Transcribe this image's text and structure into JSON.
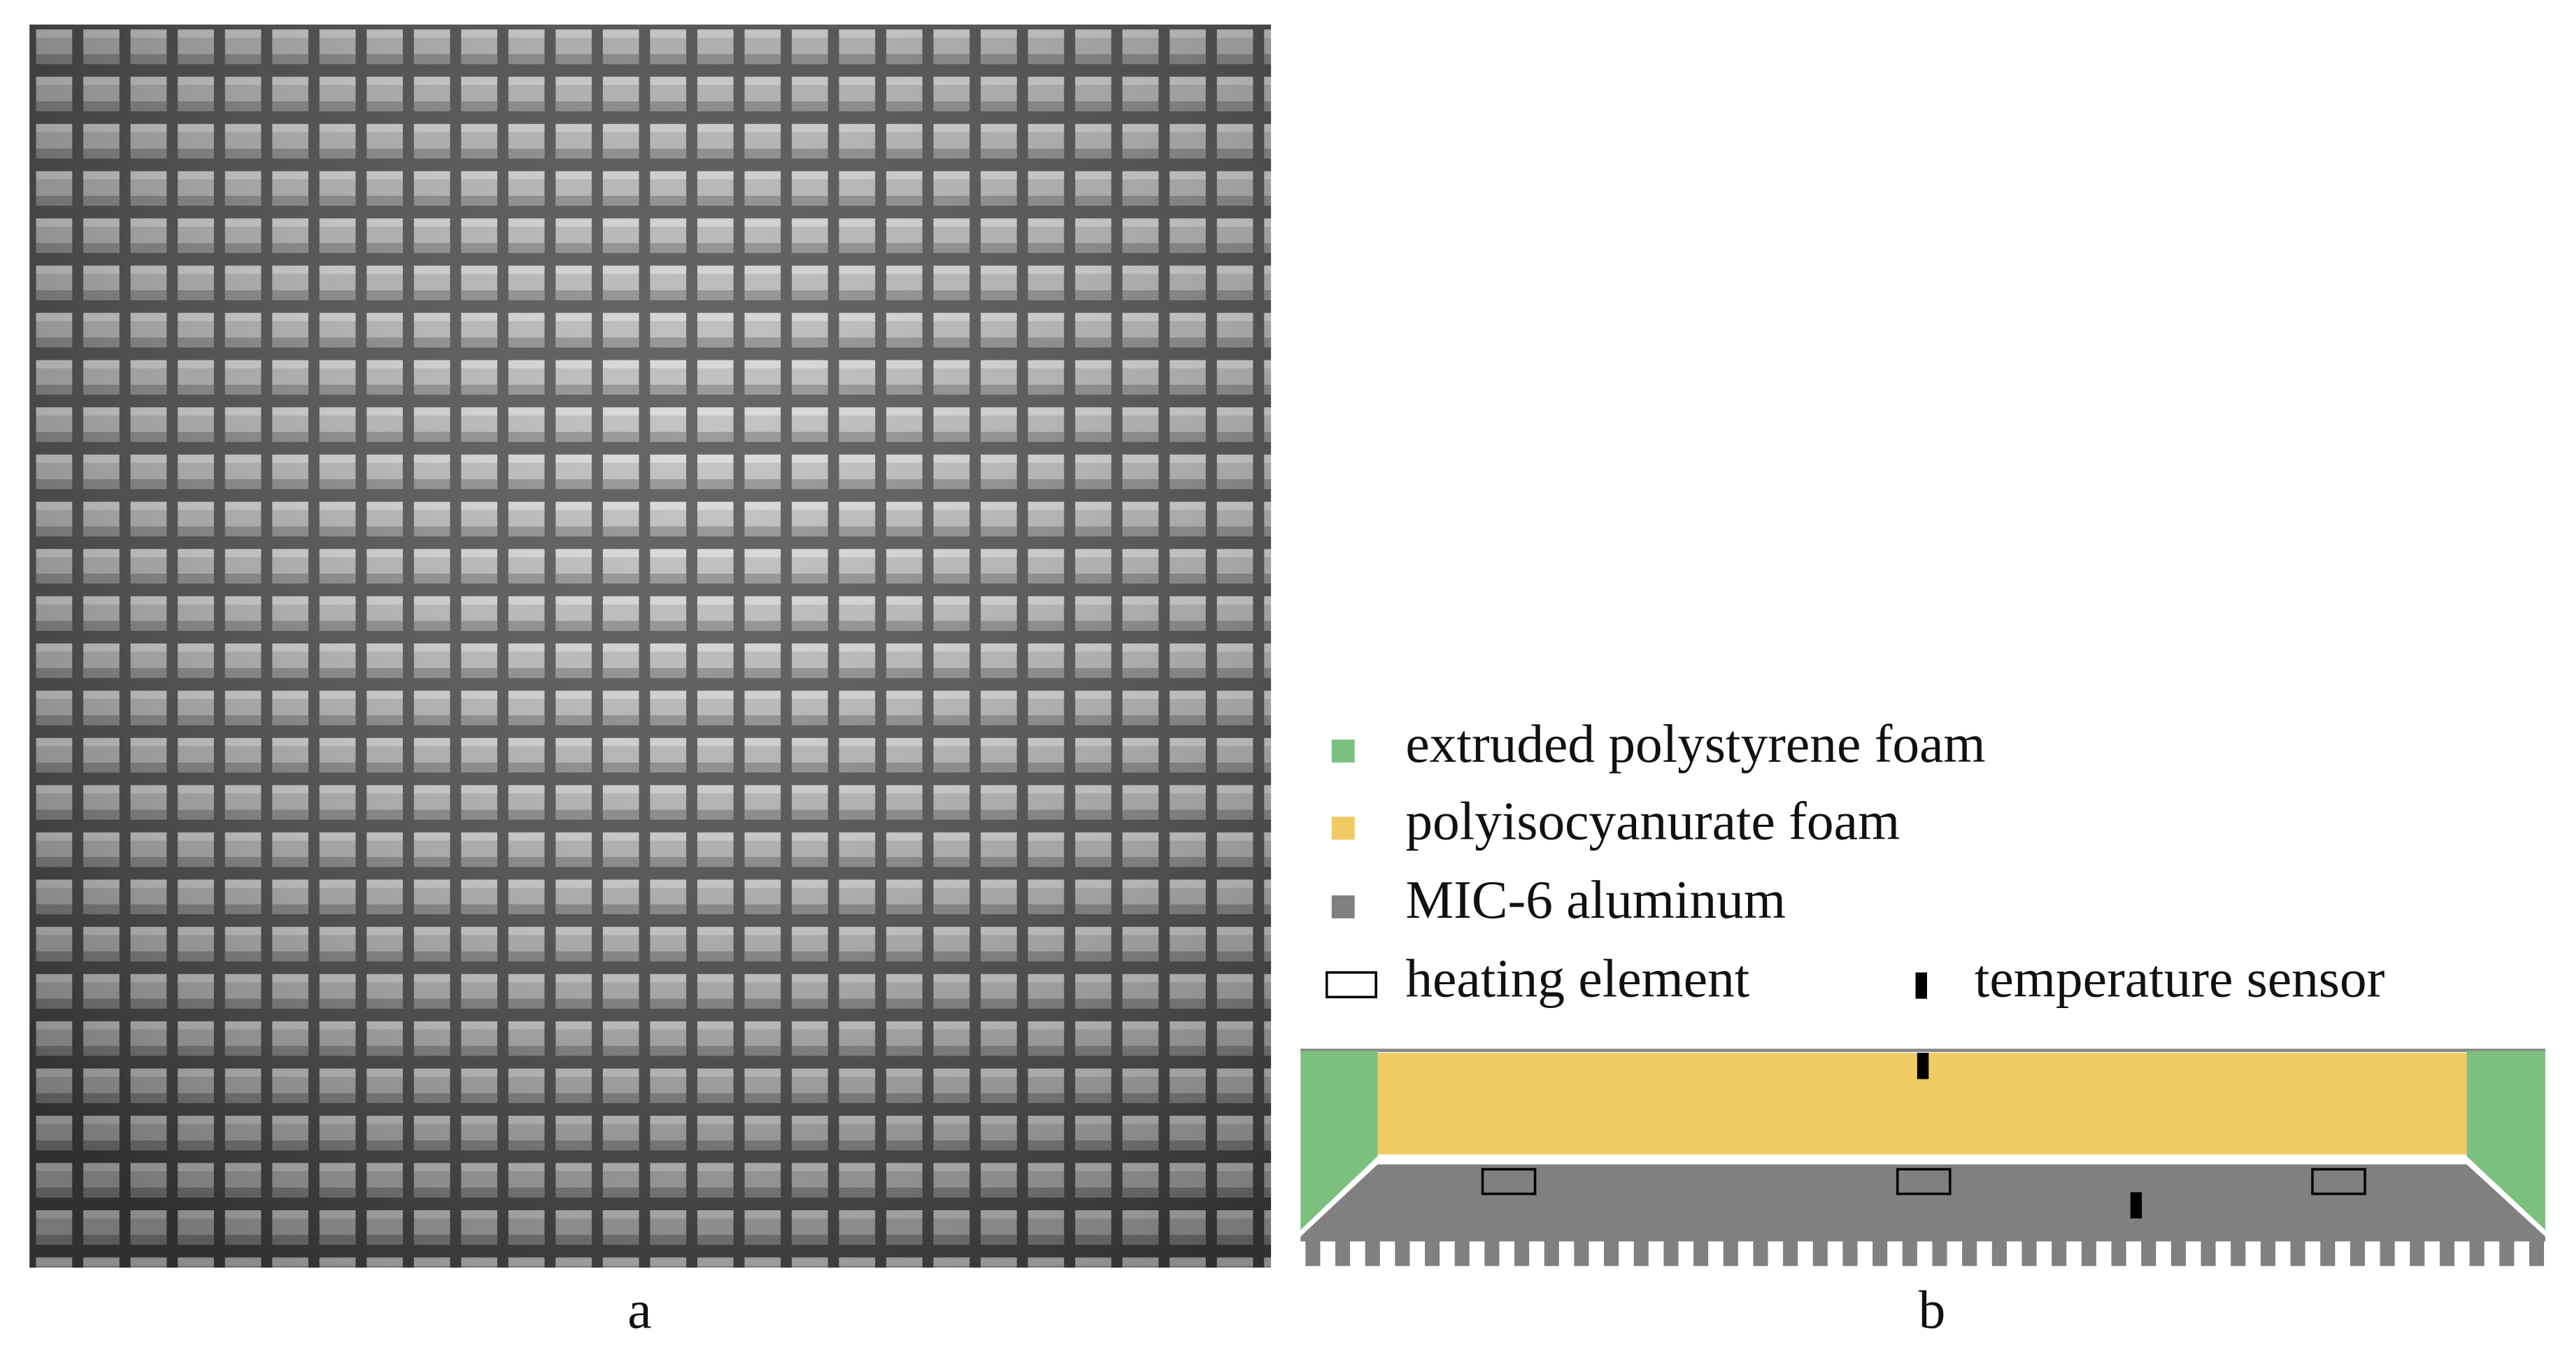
{
  "panels": [
    {
      "label": "a"
    },
    {
      "label": "b",
      "legend": [
        "extruded polystyrene foam",
        "polyisocyanurate foam",
        "MIC-6 aluminum",
        "heating element",
        "temperature sensor"
      ]
    }
  ]
}
